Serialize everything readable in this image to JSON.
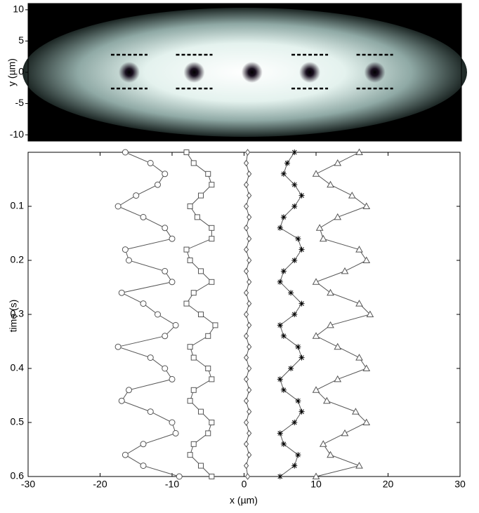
{
  "chart_data": [
    {
      "type": "image",
      "ylabel": "y (µm)",
      "xlim": [
        -30,
        30
      ],
      "ylim": [
        -11,
        11
      ],
      "yticks": [
        10,
        5,
        0,
        -5,
        -10
      ],
      "values": [
        -16,
        -7,
        1,
        9,
        18
      ]
    },
    {
      "type": "line",
      "xlabel": "x (µm)",
      "ylabel": "time (s)",
      "xlim": [
        -30,
        30
      ],
      "xticks": [
        -30,
        -20,
        -10,
        0,
        10,
        20,
        30
      ],
      "ylim": [
        0,
        0.6
      ],
      "y_inverted": true,
      "yticks": [
        0.1,
        0.2,
        0.3,
        0.4,
        0.5,
        0.6
      ],
      "t": [
        0,
        0.02,
        0.04,
        0.06,
        0.08,
        0.1,
        0.12,
        0.14,
        0.16,
        0.18,
        0.2,
        0.22,
        0.24,
        0.26,
        0.28,
        0.3,
        0.32,
        0.34,
        0.36,
        0.38,
        0.4,
        0.42,
        0.44,
        0.46,
        0.48,
        0.5,
        0.52,
        0.54,
        0.56,
        0.58,
        0.6
      ],
      "series": [
        {
          "marker": "circle",
          "color": "#555555",
          "values": [
            -16.5,
            -13,
            -11,
            -12,
            -15,
            -17.5,
            -14,
            -11,
            -10,
            -16.5,
            -16,
            -11,
            -10,
            -17,
            -14,
            -12,
            -9.5,
            -11,
            -17.5,
            -13,
            -11,
            -10,
            -16,
            -17,
            -13,
            -10,
            -9.5,
            -14,
            -16.5,
            -14,
            -9
          ]
        },
        {
          "marker": "square",
          "color": "#555555",
          "values": [
            -8,
            -7,
            -5,
            -4.5,
            -6,
            -7.5,
            -6.5,
            -4.5,
            -4.5,
            -8,
            -7.5,
            -6,
            -4.5,
            -7,
            -8,
            -6,
            -4,
            -5,
            -7.5,
            -7,
            -5,
            -4.5,
            -7,
            -7.5,
            -6,
            -4.5,
            -5,
            -7,
            -7.5,
            -6,
            -4.5
          ]
        },
        {
          "marker": "diamond",
          "color": "#555555",
          "values": [
            0.5,
            0.3,
            0.7,
            0.3,
            0.7,
            0.3,
            0.7,
            0.3,
            0.7,
            0.3,
            0.7,
            0.3,
            0.7,
            0.3,
            0.7,
            0.3,
            0.7,
            0.3,
            0.7,
            0.3,
            0.7,
            0.3,
            0.7,
            0.3,
            0.7,
            0.3,
            0.7,
            0.3,
            0.7,
            0.3,
            0.5
          ]
        },
        {
          "marker": "star",
          "color": "#555555",
          "values": [
            7,
            6,
            5.5,
            7,
            8,
            7,
            5.5,
            5,
            7.5,
            8,
            7,
            5.5,
            5,
            6.5,
            8,
            7,
            5,
            5.5,
            7.5,
            8,
            6.5,
            5,
            5.5,
            7.5,
            8,
            7,
            5,
            5.5,
            7.5,
            7,
            5
          ]
        },
        {
          "marker": "triangle",
          "color": "#555555",
          "values": [
            16,
            13,
            10,
            12,
            15,
            17,
            13,
            10.5,
            11,
            16,
            17,
            14,
            10,
            12,
            16,
            17.5,
            12,
            10,
            13,
            16,
            17,
            13,
            10,
            11.5,
            15.5,
            17,
            14,
            11,
            12,
            16,
            10
          ]
        }
      ]
    }
  ]
}
